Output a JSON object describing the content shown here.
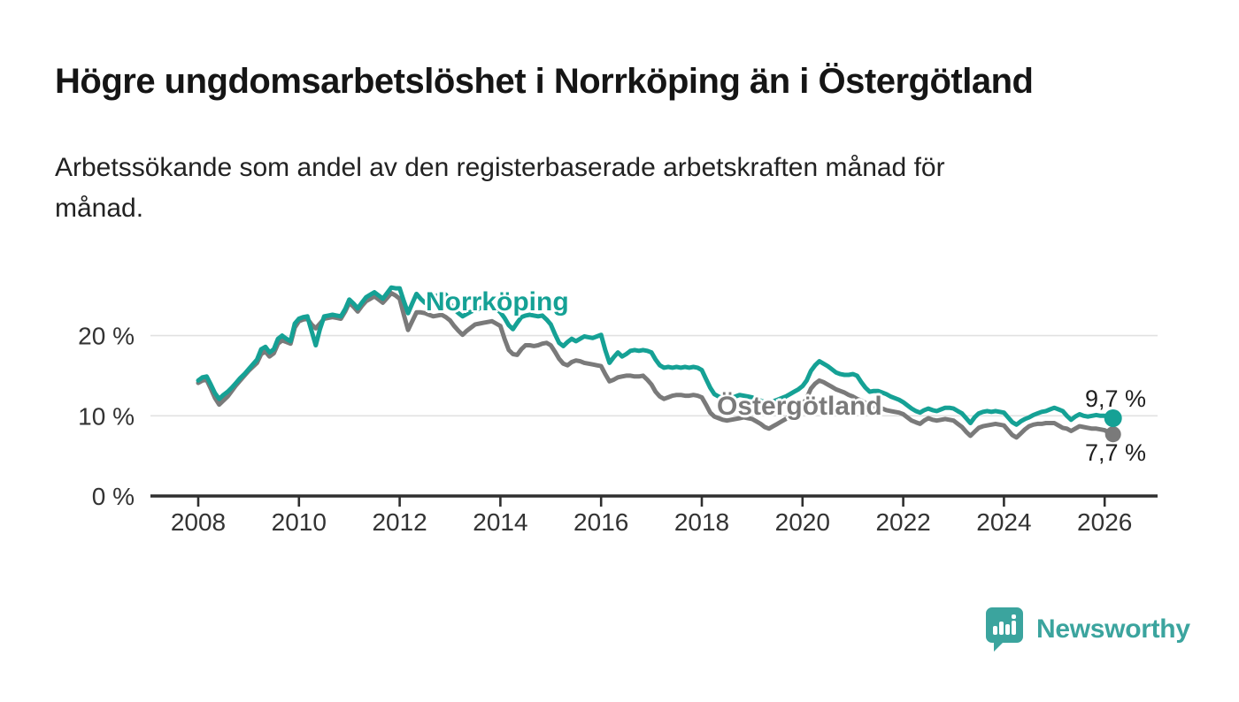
{
  "header": {
    "title": "Högre ungdomsarbetslöshet i Norrköping än i Östergötland",
    "subtitle_lines": [
      "Arbetssökande som andel av den registerbaserade arbetskraften månad för",
      "månad."
    ]
  },
  "chart_data": {
    "type": "line",
    "title": "Högre ungdomsarbetslöshet i Norrköping än i Östergötland",
    "subtitle": "Arbetssökande som andel av den registerbaserade arbetskraften månad för månad.",
    "unit": "%",
    "grid": "horizontal",
    "legend_position": "inline-labels-on-lines",
    "x_axis": {
      "ticks": [
        2008,
        2010,
        2012,
        2014,
        2016,
        2018,
        2020,
        2022,
        2024,
        2026
      ],
      "range": [
        2007.05,
        2027.05
      ]
    },
    "y_axis": {
      "ticks": [
        {
          "value": 0,
          "label": "0 %"
        },
        {
          "value": 10,
          "label": "10 %"
        },
        {
          "value": 20,
          "label": "20 %"
        }
      ],
      "range": [
        0,
        30
      ]
    },
    "series": [
      {
        "name": "Norrköping",
        "color": "#15a195",
        "value_label": "9,7 %",
        "end_value": 9.7,
        "start_year": 2008,
        "interval_months": 1,
        "values": [
          14.4,
          14.8,
          14.9,
          13.9,
          12.8,
          12.1,
          12.6,
          13.0,
          13.5,
          14.1,
          14.7,
          15.2,
          15.8,
          16.4,
          17.0,
          18.3,
          18.6,
          17.9,
          18.3,
          19.6,
          20.0,
          19.6,
          19.3,
          21.5,
          22.1,
          22.3,
          22.4,
          20.6,
          18.8,
          20.8,
          22.4,
          22.5,
          22.6,
          22.5,
          22.4,
          23.3,
          24.5,
          24.0,
          23.4,
          24.1,
          24.8,
          25.1,
          25.4,
          25.0,
          24.6,
          25.3,
          26.0,
          25.9,
          25.9,
          24.3,
          22.8,
          24.0,
          25.2,
          24.6,
          24.1,
          24.4,
          24.8,
          25.0,
          25.3,
          25.1,
          24.0,
          23.3,
          22.8,
          22.4,
          22.7,
          23.0,
          23.2,
          23.4,
          23.6,
          23.7,
          23.8,
          23.4,
          22.9,
          22.2,
          21.3,
          20.8,
          21.6,
          22.3,
          22.5,
          22.6,
          22.5,
          22.4,
          22.5,
          22.0,
          21.4,
          20.2,
          19.1,
          18.7,
          19.2,
          19.6,
          19.3,
          19.6,
          19.9,
          19.8,
          19.7,
          19.9,
          20.1,
          18.2,
          16.6,
          17.3,
          17.9,
          17.4,
          17.7,
          18.1,
          18.2,
          18.1,
          18.2,
          18.1,
          17.9,
          17.0,
          16.3,
          16.0,
          16.1,
          16.0,
          16.1,
          16.0,
          16.1,
          16.0,
          16.1,
          16.0,
          15.7,
          14.6,
          13.5,
          12.7,
          12.4,
          12.2,
          12.0,
          12.2,
          12.4,
          12.6,
          12.5,
          12.4,
          12.3,
          12.1,
          11.9,
          11.7,
          11.6,
          11.8,
          12.0,
          12.2,
          12.4,
          12.7,
          13.0,
          13.3,
          13.7,
          14.4,
          15.6,
          16.3,
          16.8,
          16.5,
          16.2,
          15.8,
          15.4,
          15.2,
          15.1,
          15.1,
          15.2,
          15.0,
          14.2,
          13.5,
          13.0,
          13.1,
          13.1,
          12.9,
          12.7,
          12.4,
          12.2,
          12.0,
          11.7,
          11.3,
          10.9,
          10.6,
          10.4,
          10.7,
          10.9,
          10.7,
          10.6,
          10.8,
          11.0,
          11.0,
          10.9,
          10.6,
          10.3,
          9.7,
          9.1,
          9.8,
          10.3,
          10.5,
          10.6,
          10.5,
          10.6,
          10.5,
          10.4,
          9.8,
          9.2,
          8.9,
          9.3,
          9.6,
          9.8,
          10.1,
          10.3,
          10.5,
          10.6,
          10.8,
          11.0,
          10.8,
          10.6,
          10.0,
          9.5,
          9.9,
          10.2,
          10.0,
          9.9,
          10.0,
          10.1,
          10.0,
          10.0,
          9.8,
          9.7
        ]
      },
      {
        "name": "Östergötland",
        "color": "#7a7a7a",
        "value_label": "7,7 %",
        "end_value": 7.7,
        "start_year": 2008,
        "interval_months": 1,
        "values": [
          14.1,
          14.4,
          14.5,
          13.4,
          12.2,
          11.4,
          11.9,
          12.4,
          13.1,
          13.8,
          14.4,
          15.0,
          15.6,
          16.1,
          16.6,
          17.7,
          18.0,
          17.4,
          17.8,
          19.0,
          19.4,
          19.2,
          19.0,
          21.0,
          21.8,
          22.0,
          22.1,
          21.4,
          20.9,
          21.5,
          22.1,
          22.2,
          22.3,
          22.2,
          22.1,
          23.0,
          24.1,
          23.6,
          23.0,
          23.7,
          24.3,
          24.6,
          24.9,
          24.5,
          24.1,
          24.7,
          25.3,
          25.0,
          24.6,
          22.6,
          20.7,
          21.8,
          22.9,
          22.9,
          22.8,
          22.6,
          22.4,
          22.5,
          22.6,
          22.3,
          21.9,
          21.2,
          20.6,
          20.1,
          20.6,
          21.0,
          21.4,
          21.5,
          21.6,
          21.7,
          21.8,
          21.5,
          21.2,
          19.6,
          18.2,
          17.7,
          17.6,
          18.3,
          18.8,
          18.8,
          18.7,
          18.8,
          19.0,
          19.1,
          18.8,
          18.0,
          17.1,
          16.5,
          16.3,
          16.7,
          16.9,
          16.8,
          16.6,
          16.5,
          16.4,
          16.3,
          16.2,
          15.2,
          14.3,
          14.5,
          14.8,
          14.9,
          15.0,
          15.0,
          14.9,
          14.9,
          15.0,
          14.5,
          13.9,
          13.0,
          12.4,
          12.1,
          12.3,
          12.5,
          12.6,
          12.6,
          12.5,
          12.5,
          12.6,
          12.5,
          12.3,
          11.4,
          10.4,
          9.9,
          9.7,
          9.5,
          9.4,
          9.5,
          9.6,
          9.7,
          9.8,
          9.7,
          9.6,
          9.3,
          9.0,
          8.6,
          8.4,
          8.7,
          9.0,
          9.3,
          9.6,
          10.0,
          10.4,
          10.8,
          11.3,
          12.2,
          13.4,
          14.0,
          14.4,
          14.2,
          13.9,
          13.6,
          13.3,
          13.1,
          12.9,
          12.6,
          12.4,
          12.1,
          11.9,
          11.6,
          11.4,
          11.2,
          11.0,
          10.9,
          10.7,
          10.6,
          10.5,
          10.4,
          10.2,
          9.8,
          9.4,
          9.2,
          9.0,
          9.4,
          9.7,
          9.5,
          9.4,
          9.5,
          9.6,
          9.5,
          9.4,
          9.0,
          8.6,
          8.0,
          7.5,
          8.0,
          8.5,
          8.7,
          8.8,
          8.9,
          9.0,
          8.9,
          8.8,
          8.2,
          7.6,
          7.3,
          7.8,
          8.3,
          8.7,
          8.9,
          9.0,
          9.0,
          9.1,
          9.1,
          9.1,
          8.8,
          8.5,
          8.4,
          8.1,
          8.4,
          8.7,
          8.6,
          8.5,
          8.4,
          8.4,
          8.3,
          8.2,
          7.9,
          7.7
        ]
      }
    ]
  },
  "footer": {
    "brand": "Newsworthy",
    "brand_color": "#3ba49e",
    "logo_icon": "speech-bubble-bar-chart-icon"
  },
  "colors": {
    "norrkoping_line": "#15a195",
    "ostergotland_line": "#7a7a7a",
    "axis": "#2f2f2f",
    "gridline": "#e1e1e1",
    "text": "#222222"
  }
}
